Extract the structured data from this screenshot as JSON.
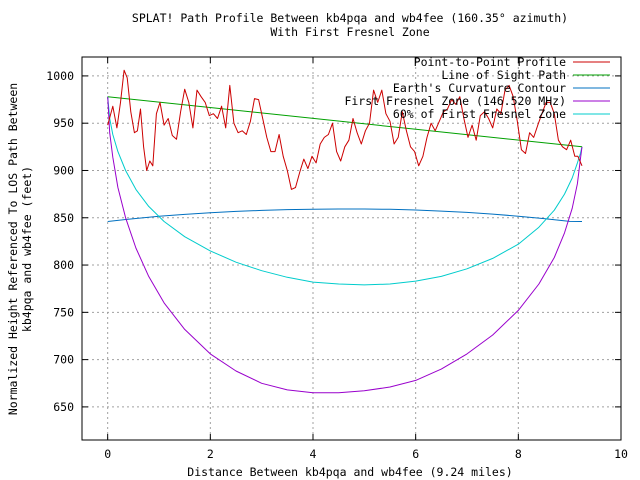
{
  "chart_data": {
    "type": "line",
    "title_line1": "SPLAT! Path Profile Between kb4pqa and wb4fee (160.35° azimuth)",
    "title_line2": "With First Fresnel Zone",
    "xlabel": "Distance Between kb4pqa and wb4fee (9.24 miles)",
    "ylabel_line1": "Normalized Height Referenced To LOS Path Between",
    "ylabel_line2": "kb4pqa and wb4fee (feet)",
    "xlim": [
      -0.5,
      10
    ],
    "ylim": [
      615,
      1020
    ],
    "xticks": [
      0,
      2,
      4,
      6,
      8,
      10
    ],
    "yticks": [
      650,
      700,
      750,
      800,
      850,
      900,
      950,
      1000
    ],
    "grid": true,
    "legend_position": "top-right",
    "series": [
      {
        "name": "Point-to-Point Profile",
        "color": "#cc0000",
        "x": [
          0.0,
          0.1,
          0.18,
          0.25,
          0.32,
          0.38,
          0.45,
          0.52,
          0.58,
          0.64,
          0.7,
          0.76,
          0.82,
          0.88,
          0.95,
          1.02,
          1.1,
          1.18,
          1.26,
          1.34,
          1.42,
          1.5,
          1.58,
          1.66,
          1.74,
          1.82,
          1.9,
          1.98,
          2.06,
          2.14,
          2.22,
          2.3,
          2.38,
          2.46,
          2.54,
          2.62,
          2.7,
          2.78,
          2.86,
          2.94,
          3.02,
          3.1,
          3.18,
          3.26,
          3.34,
          3.42,
          3.5,
          3.58,
          3.66,
          3.74,
          3.82,
          3.9,
          3.98,
          4.06,
          4.14,
          4.22,
          4.3,
          4.38,
          4.46,
          4.54,
          4.62,
          4.7,
          4.78,
          4.86,
          4.94,
          5.02,
          5.1,
          5.18,
          5.26,
          5.34,
          5.42,
          5.5,
          5.58,
          5.66,
          5.74,
          5.82,
          5.9,
          5.98,
          6.06,
          6.14,
          6.22,
          6.3,
          6.38,
          6.46,
          6.54,
          6.62,
          6.7,
          6.78,
          6.86,
          6.94,
          7.02,
          7.1,
          7.18,
          7.26,
          7.34,
          7.42,
          7.5,
          7.58,
          7.66,
          7.74,
          7.82,
          7.9,
          7.98,
          8.06,
          8.14,
          8.22,
          8.3,
          8.38,
          8.46,
          8.54,
          8.62,
          8.7,
          8.78,
          8.86,
          8.94,
          9.02,
          9.1,
          9.16,
          9.2,
          9.24
        ],
        "y": [
          948,
          968,
          945,
          972,
          1006,
          998,
          962,
          940,
          942,
          965,
          925,
          900,
          910,
          905,
          960,
          972,
          948,
          955,
          937,
          933,
          962,
          986,
          972,
          945,
          985,
          978,
          972,
          958,
          960,
          955,
          968,
          945,
          990,
          950,
          940,
          942,
          938,
          952,
          976,
          975,
          955,
          935,
          920,
          920,
          938,
          915,
          900,
          880,
          882,
          898,
          912,
          902,
          915,
          908,
          928,
          935,
          938,
          950,
          920,
          910,
          925,
          932,
          955,
          940,
          928,
          942,
          950,
          985,
          972,
          985,
          960,
          952,
          928,
          935,
          962,
          942,
          925,
          920,
          905,
          915,
          935,
          950,
          942,
          952,
          962,
          965,
          975,
          970,
          978,
          955,
          935,
          948,
          932,
          958,
          962,
          955,
          945,
          965,
          960,
          985,
          990,
          978,
          952,
          922,
          918,
          940,
          935,
          948,
          960,
          972,
          972,
          960,
          932,
          925,
          922,
          932,
          915,
          915,
          910,
          905
        ]
      },
      {
        "name": "Line of Sight Path",
        "color": "#00a000",
        "x": [
          0,
          9.24
        ],
        "y": [
          978,
          925
        ]
      },
      {
        "name": "Earth's Curvature Contour",
        "color": "#0070c0",
        "x": [
          0,
          0.5,
          1.0,
          1.5,
          2.0,
          2.5,
          3.0,
          3.5,
          4.0,
          4.5,
          5.0,
          5.5,
          6.0,
          6.5,
          7.0,
          7.5,
          8.0,
          8.5,
          9.0,
          9.24
        ],
        "y": [
          846.0,
          849.0,
          851.5,
          853.6,
          855.3,
          856.7,
          857.8,
          858.6,
          859.1,
          859.3,
          859.3,
          858.9,
          858.2,
          857.1,
          855.7,
          853.9,
          851.7,
          849.1,
          846.2,
          846.0
        ]
      },
      {
        "name": "First Fresnel Zone (146.520 MHz)",
        "color": "#9900cc",
        "x": [
          0,
          0.04,
          0.1,
          0.2,
          0.35,
          0.55,
          0.8,
          1.1,
          1.5,
          2.0,
          2.5,
          3.0,
          3.5,
          4.0,
          4.5,
          5.0,
          5.5,
          6.0,
          6.5,
          7.0,
          7.5,
          8.0,
          8.4,
          8.7,
          8.9,
          9.05,
          9.15,
          9.21,
          9.24
        ],
        "y": [
          978,
          940,
          914,
          882,
          850,
          818,
          788,
          760,
          732,
          706,
          688,
          675,
          668,
          665,
          665,
          667,
          671,
          678,
          690,
          706,
          726,
          752,
          780,
          808,
          834,
          860,
          886,
          912,
          925
        ]
      },
      {
        "name": "60% of First Fresnel Zone",
        "color": "#00cccc",
        "x": [
          0,
          0.04,
          0.1,
          0.2,
          0.35,
          0.55,
          0.8,
          1.1,
          1.5,
          2.0,
          2.5,
          3.0,
          3.5,
          4.0,
          4.5,
          5.0,
          5.5,
          6.0,
          6.5,
          7.0,
          7.5,
          8.0,
          8.4,
          8.7,
          8.9,
          9.05,
          9.15,
          9.21,
          9.24
        ],
        "y": [
          978,
          955,
          938,
          920,
          900,
          880,
          862,
          846,
          830,
          815,
          803,
          794,
          787,
          782,
          780,
          779,
          780,
          783,
          788,
          796,
          807,
          822,
          840,
          858,
          875,
          892,
          908,
          918,
          925
        ]
      }
    ]
  }
}
